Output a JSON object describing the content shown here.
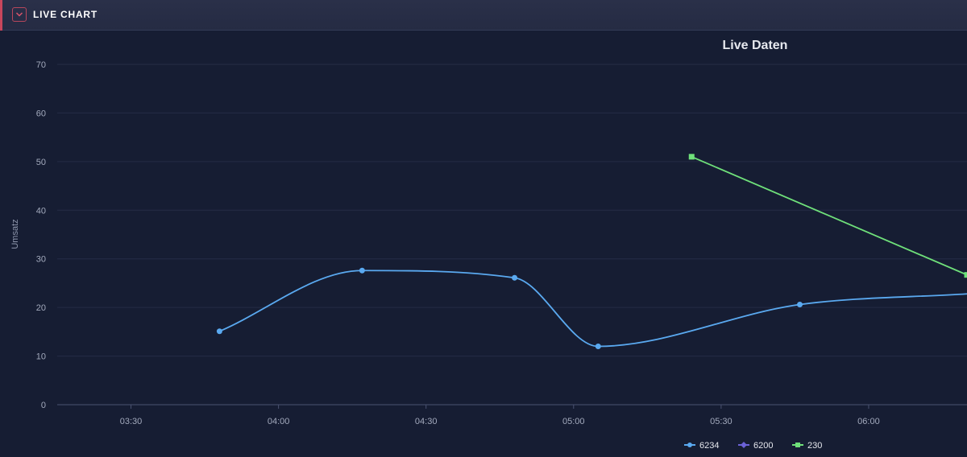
{
  "panel": {
    "title": "LIVE CHART",
    "toggle_icon": "chevron-down-icon",
    "accent_color": "#c8465c"
  },
  "chart_data": {
    "type": "line",
    "title": "Live Daten",
    "ylabel": "Umsatz",
    "xlabel": "",
    "ylim": [
      0,
      70
    ],
    "yticks": [
      0,
      10,
      20,
      30,
      40,
      50,
      60,
      70
    ],
    "xlim": [
      "03:15",
      "06:20"
    ],
    "xticks": [
      "03:30",
      "04:00",
      "04:30",
      "05:00",
      "05:30",
      "06:00"
    ],
    "grid": true,
    "legend_position": "bottom",
    "series": [
      {
        "name": "6234",
        "color": "#5aa9f0",
        "marker": "circle",
        "points": [
          {
            "x": "03:48",
            "y": 15.1
          },
          {
            "x": "04:17",
            "y": 27.6
          },
          {
            "x": "04:48",
            "y": 26.1
          },
          {
            "x": "05:05",
            "y": 12.0
          },
          {
            "x": "05:46",
            "y": 20.6
          },
          {
            "x": "06:20",
            "y": 22.8
          }
        ]
      },
      {
        "name": "6200",
        "color": "#6b62d8",
        "marker": "diamond",
        "points": []
      },
      {
        "name": "230",
        "color": "#6fe07a",
        "marker": "square",
        "points": [
          {
            "x": "05:24",
            "y": 51.0
          },
          {
            "x": "06:20",
            "y": 26.7
          }
        ]
      }
    ]
  }
}
